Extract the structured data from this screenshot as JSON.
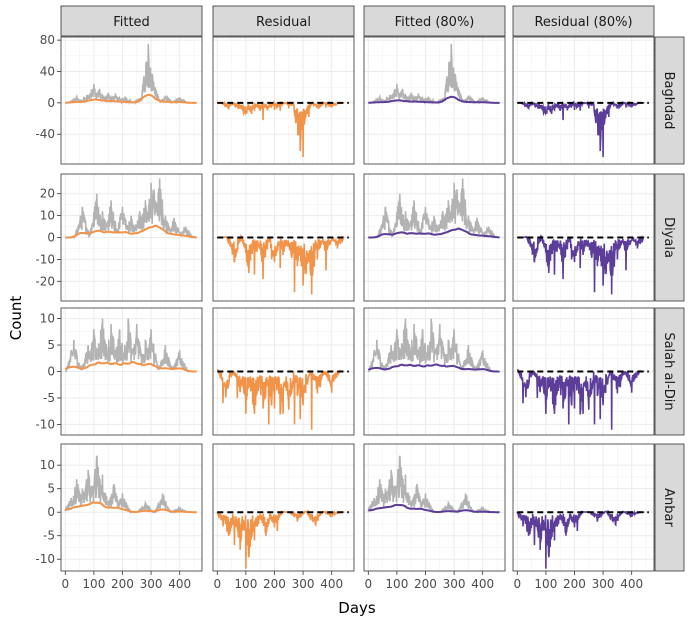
{
  "chart_data": {
    "type": "faceted-line",
    "xlabel": "Days",
    "ylabel": "Count",
    "columns": [
      "Fitted",
      "Residual",
      "Fitted (80%)",
      "Residual (80%)"
    ],
    "rows": [
      "Baghdad",
      "Diyala",
      "Salah al-Din",
      "Anbar"
    ],
    "x_range": [
      -15,
      478
    ],
    "x_ticks": [
      0,
      100,
      200,
      300,
      400
    ],
    "x_tick_labels": [
      "0",
      "100",
      "200",
      "300",
      "400"
    ],
    "y_ranges": [
      [
        -78,
        84
      ],
      [
        -29,
        29
      ],
      [
        -12,
        12
      ],
      [
        -12.5,
        14.5
      ]
    ],
    "y_ticks": [
      [
        -40,
        0,
        40,
        80
      ],
      [
        -20,
        -10,
        0,
        10,
        20
      ],
      [
        -10,
        -5,
        0,
        5,
        10
      ],
      [
        -10,
        -5,
        0,
        5,
        10
      ]
    ],
    "y_tick_labels": [
      [
        "-40",
        "0",
        "40",
        "80"
      ],
      [
        "-20",
        "-10",
        "0",
        "10",
        "20"
      ],
      [
        "-10",
        "-5",
        "0",
        "5",
        "10"
      ],
      [
        "-10",
        "-5",
        "0",
        "5",
        "10"
      ]
    ],
    "colors": {
      "observed": "#b3b3b3",
      "fitted": "#f2934a",
      "fitted80": "#5c3d99",
      "reference": "#000000",
      "strip_bg": "#d9d9d9",
      "grid": "#ebebeb"
    },
    "observed": [
      {
        "peaks": [
          [
            40,
            8
          ],
          [
            75,
            10
          ],
          [
            100,
            24
          ],
          [
            120,
            18
          ],
          [
            150,
            13
          ],
          [
            175,
            12
          ],
          [
            210,
            8
          ],
          [
            260,
            6
          ],
          [
            290,
            75
          ],
          [
            305,
            33
          ],
          [
            350,
            9
          ],
          [
            400,
            7
          ]
        ],
        "fit_level": 3
      },
      {
        "peaks": [
          [
            60,
            14
          ],
          [
            110,
            20
          ],
          [
            130,
            12
          ],
          [
            160,
            17
          ],
          [
            200,
            14
          ],
          [
            230,
            10
          ],
          [
            260,
            12
          ],
          [
            280,
            17
          ],
          [
            300,
            25
          ],
          [
            310,
            22
          ],
          [
            330,
            27
          ],
          [
            350,
            10
          ],
          [
            380,
            9
          ],
          [
            420,
            5
          ]
        ],
        "fit_level": 2
      },
      {
        "peaks": [
          [
            30,
            6
          ],
          [
            80,
            5
          ],
          [
            100,
            8
          ],
          [
            130,
            10
          ],
          [
            160,
            9
          ],
          [
            190,
            8
          ],
          [
            220,
            10
          ],
          [
            250,
            9
          ],
          [
            280,
            6
          ],
          [
            300,
            8
          ],
          [
            350,
            5
          ],
          [
            400,
            4
          ]
        ],
        "fit_level": 0.7
      },
      {
        "peaks": [
          [
            20,
            3
          ],
          [
            40,
            7
          ],
          [
            60,
            5
          ],
          [
            80,
            9
          ],
          [
            110,
            12
          ],
          [
            130,
            8
          ],
          [
            170,
            6
          ],
          [
            200,
            4
          ],
          [
            280,
            2
          ],
          [
            340,
            4
          ],
          [
            400,
            1
          ]
        ],
        "fit_level": 1.5
      }
    ],
    "residual_dips": [
      {
        "dips": [
          [
            30,
            -5
          ],
          [
            100,
            -12
          ],
          [
            130,
            -9
          ],
          [
            160,
            -22
          ],
          [
            200,
            -9
          ],
          [
            220,
            -10
          ],
          [
            250,
            -7
          ],
          [
            270,
            -11
          ],
          [
            285,
            -14
          ],
          [
            300,
            -69
          ],
          [
            320,
            -18
          ],
          [
            380,
            -6
          ]
        ]
      },
      {
        "dips": [
          [
            50,
            -3
          ],
          [
            100,
            -7
          ],
          [
            130,
            -17
          ],
          [
            160,
            -19
          ],
          [
            190,
            -10
          ],
          [
            220,
            -14
          ],
          [
            270,
            -25
          ],
          [
            300,
            -22
          ],
          [
            330,
            -26
          ],
          [
            350,
            -10
          ],
          [
            380,
            -15
          ],
          [
            420,
            -5
          ]
        ]
      },
      {
        "dips": [
          [
            20,
            -6
          ],
          [
            70,
            -5
          ],
          [
            100,
            -8
          ],
          [
            130,
            -8
          ],
          [
            160,
            -7
          ],
          [
            180,
            -10
          ],
          [
            200,
            -7
          ],
          [
            230,
            -8
          ],
          [
            270,
            -10
          ],
          [
            290,
            -9
          ],
          [
            330,
            -11
          ],
          [
            360,
            -3
          ],
          [
            400,
            -4
          ]
        ]
      },
      {
        "dips": [
          [
            20,
            -3
          ],
          [
            40,
            -5
          ],
          [
            60,
            -7
          ],
          [
            80,
            -8
          ],
          [
            100,
            -12
          ],
          [
            130,
            -6
          ],
          [
            170,
            -5
          ],
          [
            210,
            -4
          ],
          [
            280,
            -2
          ],
          [
            340,
            -1
          ],
          [
            400,
            -1
          ]
        ]
      }
    ]
  }
}
